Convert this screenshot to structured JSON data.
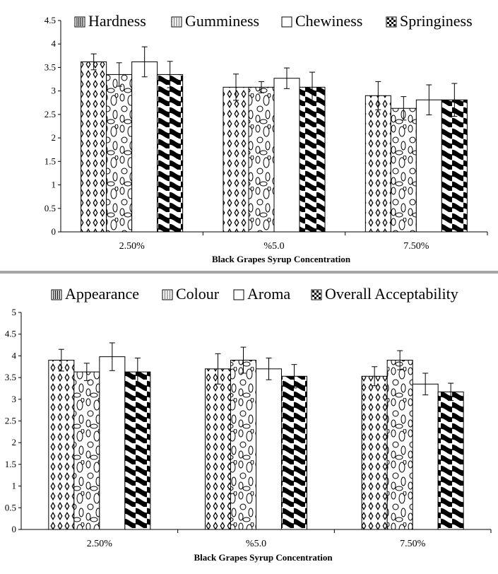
{
  "chart_data": [
    {
      "type": "bar",
      "title": "",
      "xlabel": "Black Grapes Syrup Concentration",
      "ylabel": "",
      "ylim": [
        0,
        4.5
      ],
      "yticks": [
        "0",
        "0.5",
        "1",
        "1.5",
        "2",
        "2.5",
        "3",
        "3.5",
        "4",
        "4.5"
      ],
      "categories": [
        "2.50%",
        "%5.0",
        "7.50%"
      ],
      "legend_position": "top",
      "series": [
        {
          "name": "Hardness",
          "pattern": "diamonds",
          "values": [
            3.62,
            3.08,
            2.9
          ],
          "errors": [
            0.17,
            0.28,
            0.3
          ]
        },
        {
          "name": "Gumminess",
          "pattern": "ovals",
          "values": [
            3.35,
            3.08,
            2.63
          ],
          "errors": [
            0.25,
            0.12,
            0.25
          ]
        },
        {
          "name": "Chewiness",
          "pattern": "plain",
          "values": [
            3.62,
            3.27,
            2.81
          ],
          "errors": [
            0.32,
            0.22,
            0.32
          ]
        },
        {
          "name": "Springiness",
          "pattern": "waves",
          "values": [
            3.35,
            3.08,
            2.81
          ],
          "errors": [
            0.28,
            0.32,
            0.35
          ]
        }
      ]
    },
    {
      "type": "bar",
      "title": "",
      "xlabel": "Black Grapes Syrup Concentration",
      "ylabel": "",
      "ylim": [
        0,
        5
      ],
      "yticks": [
        "0",
        "0.5",
        "1",
        "1.5",
        "2",
        "2.5",
        "3",
        "3.5",
        "4",
        "4.5",
        "5"
      ],
      "categories": [
        "2.50%",
        "%5.0",
        "7.50%"
      ],
      "legend_position": "top",
      "series": [
        {
          "name": "Appearance",
          "pattern": "diamonds",
          "values": [
            3.9,
            3.7,
            3.53
          ],
          "errors": [
            0.25,
            0.35,
            0.22
          ]
        },
        {
          "name": "Colour",
          "pattern": "ovals",
          "values": [
            3.63,
            3.9,
            3.9
          ],
          "errors": [
            0.2,
            0.3,
            0.22
          ]
        },
        {
          "name": "Aroma",
          "pattern": "plain",
          "values": [
            3.98,
            3.7,
            3.35
          ],
          "errors": [
            0.32,
            0.25,
            0.25
          ]
        },
        {
          "name": "Overall Acceptability",
          "pattern": "waves",
          "values": [
            3.63,
            3.53,
            3.17
          ],
          "errors": [
            0.32,
            0.27,
            0.2
          ]
        }
      ]
    }
  ]
}
